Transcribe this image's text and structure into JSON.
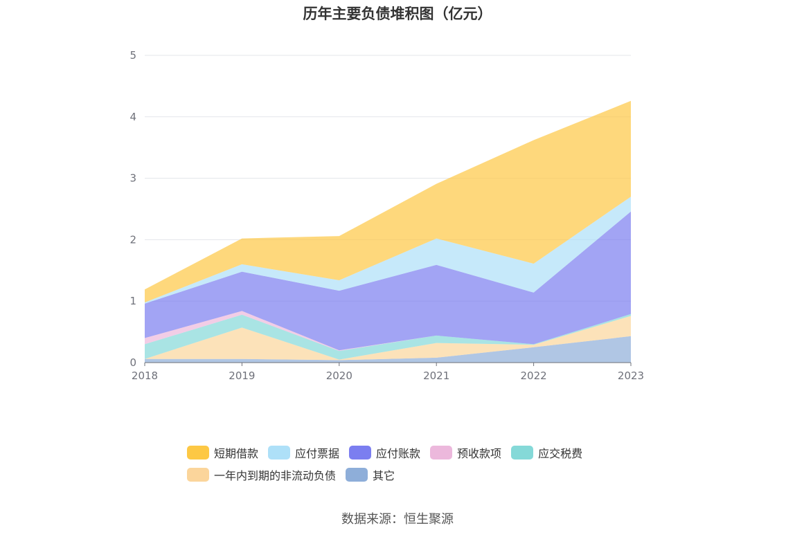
{
  "chart_data": {
    "type": "area",
    "title": "历年主要负债堆积图（亿元）",
    "stacked": true,
    "x": [
      "2018",
      "2019",
      "2020",
      "2021",
      "2022",
      "2023"
    ],
    "ylim": [
      0,
      5
    ],
    "yticks": [
      "0",
      "1",
      "2",
      "3",
      "4",
      "5"
    ],
    "grid": true,
    "legend_position": "bottom",
    "series": [
      {
        "name": "其它",
        "color": "#8eaed9",
        "values": [
          0.06,
          0.06,
          0.04,
          0.08,
          0.25,
          0.43
        ]
      },
      {
        "name": "一年内到期的非流动负债",
        "color": "#fbd59b",
        "values": [
          0.0,
          0.51,
          0.01,
          0.24,
          0.04,
          0.33
        ]
      },
      {
        "name": "应交税费",
        "color": "#85d9d8",
        "values": [
          0.24,
          0.21,
          0.14,
          0.12,
          0.01,
          0.03
        ]
      },
      {
        "name": "预收款项",
        "color": "#ecb8dc",
        "values": [
          0.1,
          0.06,
          0.01,
          0.0,
          0.0,
          0.0
        ]
      },
      {
        "name": "应付账款",
        "color": "#7b7ef0",
        "values": [
          0.56,
          0.64,
          0.97,
          1.15,
          0.84,
          1.67
        ]
      },
      {
        "name": "应付票据",
        "color": "#aee0f8",
        "values": [
          0.02,
          0.12,
          0.17,
          0.43,
          0.47,
          0.24
        ]
      },
      {
        "name": "短期借款",
        "color": "#fdc844",
        "values": [
          0.21,
          0.42,
          0.72,
          0.89,
          2.01,
          1.56
        ]
      }
    ]
  },
  "legend": {
    "row1": [
      "短期借款",
      "应付票据",
      "应付账款",
      "预收款项",
      "应交税费"
    ],
    "row2": [
      "一年内到期的非流动负债",
      "其它"
    ],
    "colors": {
      "短期借款": "#fdc844",
      "应付票据": "#aee0f8",
      "应付账款": "#7b7ef0",
      "预收款项": "#ecb8dc",
      "应交税费": "#85d9d8",
      "一年内到期的非流动负债": "#fbd59b",
      "其它": "#8eaed9"
    }
  },
  "source": "数据来源：恒生聚源"
}
